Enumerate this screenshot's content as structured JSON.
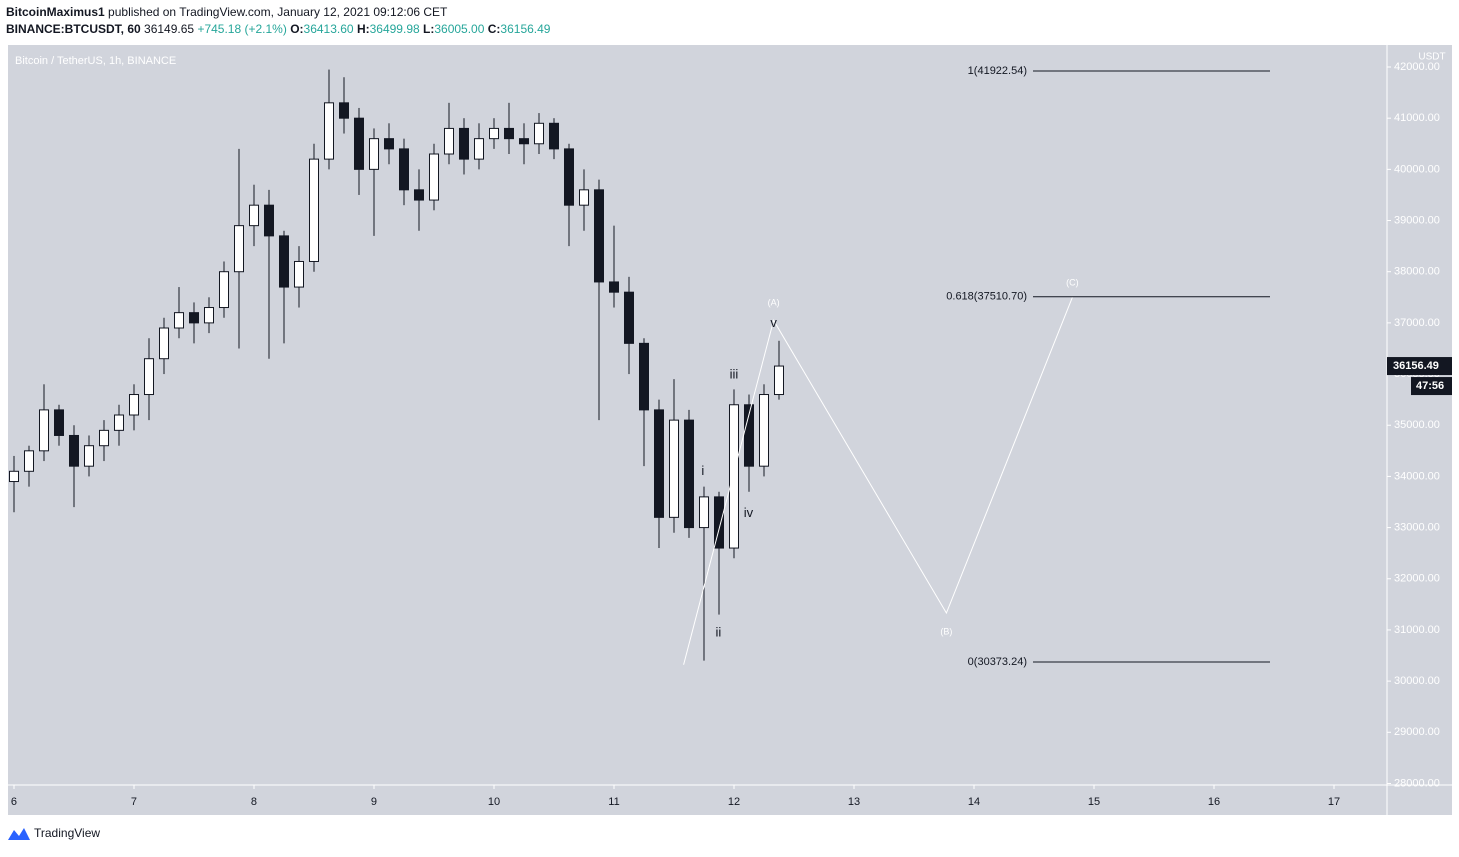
{
  "header": {
    "publisher": "BitcoinMaximus1",
    "published": "published on TradingView.com, January 12, 2021 09:12:06 CET",
    "symbol": "BINANCE:BTCUSDT, 60",
    "price": "36149.65",
    "change": "+745.18 (+2.1%)",
    "o_label": "O:",
    "open": "36413.60",
    "h_label": "H:",
    "high": "36499.98",
    "l_label": "L:",
    "low": "36005.00",
    "c_label": "C:",
    "close": "36156.49"
  },
  "footer": {
    "brand": "TradingView"
  },
  "chart_data": {
    "type": "candlestick",
    "title": "Bitcoin / TetherUS, 1h, BINANCE",
    "y_unit": "USDT",
    "up_color": "#ffffff",
    "down_color": "#131722",
    "background": "#d1d4dc",
    "x": [
      6,
      6.125,
      6.25,
      6.375,
      6.5,
      6.625,
      6.75,
      6.875,
      7,
      7.125,
      7.25,
      7.375,
      7.5,
      7.625,
      7.75,
      7.875,
      8,
      8.125,
      8.25,
      8.375,
      8.5,
      8.625,
      8.75,
      8.875,
      9,
      9.125,
      9.25,
      9.375,
      9.5,
      9.625,
      9.75,
      9.875,
      10,
      10.125,
      10.25,
      10.375,
      10.5,
      10.625,
      10.75,
      10.875,
      11,
      11.125,
      11.25,
      11.375,
      11.5,
      11.625,
      11.75,
      11.875,
      12,
      12.125,
      12.25,
      12.375
    ],
    "open": [
      33900,
      34100,
      34500,
      35300,
      34800,
      34200,
      34600,
      34900,
      35200,
      35600,
      36300,
      36900,
      37200,
      37000,
      37300,
      38000,
      38900,
      39300,
      38700,
      37700,
      38200,
      40200,
      41300,
      41000,
      40000,
      40600,
      40400,
      39600,
      39400,
      40300,
      40800,
      40200,
      40600,
      40800,
      40600,
      40500,
      40900,
      40400,
      39300,
      39600,
      37800,
      37600,
      36600,
      35300,
      33200,
      35100,
      33000,
      33600,
      32600,
      35400,
      34200,
      35600
    ],
    "high": [
      34400,
      34600,
      35800,
      35400,
      35000,
      34800,
      35100,
      35400,
      35800,
      36700,
      37100,
      37700,
      37400,
      37500,
      38200,
      40400,
      39700,
      39600,
      38800,
      38500,
      40500,
      41950,
      41800,
      41200,
      40800,
      40900,
      40600,
      40000,
      40500,
      41300,
      41000,
      40900,
      41000,
      41300,
      40900,
      41100,
      41000,
      40500,
      40000,
      39800,
      38900,
      37900,
      36700,
      35500,
      35900,
      35300,
      33800,
      33700,
      35700,
      35600,
      35800,
      36650
    ],
    "low": [
      33300,
      33800,
      34300,
      34600,
      33400,
      34000,
      34300,
      34600,
      34900,
      35100,
      36000,
      36700,
      36600,
      36800,
      37100,
      36500,
      38500,
      36300,
      36600,
      37300,
      38000,
      40000,
      40700,
      39500,
      38700,
      40100,
      39300,
      38800,
      39200,
      40100,
      39900,
      40000,
      40400,
      40300,
      40100,
      40300,
      40200,
      38500,
      38800,
      35100,
      37300,
      36000,
      34200,
      32600,
      32900,
      32800,
      30400,
      31300,
      32400,
      33700,
      34000,
      35500
    ],
    "close": [
      34100,
      34500,
      35300,
      34800,
      34200,
      34600,
      34900,
      35200,
      35600,
      36300,
      36900,
      37200,
      37000,
      37300,
      38000,
      38900,
      39300,
      38700,
      37700,
      38200,
      40200,
      41300,
      41000,
      40000,
      40600,
      40400,
      39600,
      39400,
      40300,
      40800,
      40200,
      40600,
      40800,
      40600,
      40500,
      40900,
      40400,
      39300,
      39600,
      37800,
      37600,
      36600,
      35300,
      33200,
      35100,
      33000,
      33600,
      32600,
      35400,
      34200,
      35600,
      36156.49
    ],
    "projection": {
      "color": "#ffffff",
      "x": [
        11.58,
        12.33,
        13.77,
        14.82
      ],
      "values": [
        30320,
        37050,
        31330,
        37500
      ]
    },
    "wave_labels": [
      {
        "text": "i",
        "x": 11.74,
        "y": 34090,
        "color": "#131722"
      },
      {
        "text": "ii",
        "x": 11.87,
        "y": 30940,
        "color": "#131722"
      },
      {
        "text": "iii",
        "x": 12.0,
        "y": 35980,
        "color": "#131722"
      },
      {
        "text": "iv",
        "x": 12.12,
        "y": 33270,
        "color": "#131722"
      },
      {
        "text": "v",
        "x": 12.33,
        "y": 36990,
        "color": "#131722"
      },
      {
        "text": "(A)",
        "x": 12.33,
        "y": 37390,
        "color": "#ffffff"
      },
      {
        "text": "(B)",
        "x": 13.77,
        "y": 30960,
        "color": "#ffffff"
      },
      {
        "text": "(C)",
        "x": 14.82,
        "y": 37780,
        "color": "#ffffff"
      }
    ],
    "fib_levels": [
      {
        "value": 41922.54,
        "label": "1(41922.54)"
      },
      {
        "value": 37510.7,
        "label": "0.618(37510.70)"
      },
      {
        "value": 30373.24,
        "label": "0(30373.24)"
      }
    ],
    "last_price": {
      "value": 36156.49,
      "label": "36156.49"
    },
    "countdown": "47:56",
    "xlim": [
      5.95,
      17.4417
    ],
    "xticks": [
      6,
      7,
      8,
      9,
      10,
      11,
      12,
      13,
      14,
      15,
      16,
      17
    ],
    "ylim": [
      27970,
      42430
    ],
    "yticks": [
      {
        "value": 28000,
        "label": "28000.00"
      },
      {
        "value": 29000,
        "label": "29000.00"
      },
      {
        "value": 30000,
        "label": "30000.00"
      },
      {
        "value": 31000,
        "label": "31000.00"
      },
      {
        "value": 32000,
        "label": "32000.00"
      },
      {
        "value": 33000,
        "label": "33000.00"
      },
      {
        "value": 34000,
        "label": "34000.00"
      },
      {
        "value": 35000,
        "label": "35000.00"
      },
      {
        "value": 36000,
        "label": "36000.00"
      },
      {
        "value": 37000,
        "label": "37000.00"
      },
      {
        "value": 38000,
        "label": "38000.00"
      },
      {
        "value": 39000,
        "label": "39000.00"
      },
      {
        "value": 40000,
        "label": "40000.00"
      },
      {
        "value": 41000,
        "label": "41000.00"
      },
      {
        "value": 42000,
        "label": "42000.00"
      }
    ],
    "grid": false
  }
}
